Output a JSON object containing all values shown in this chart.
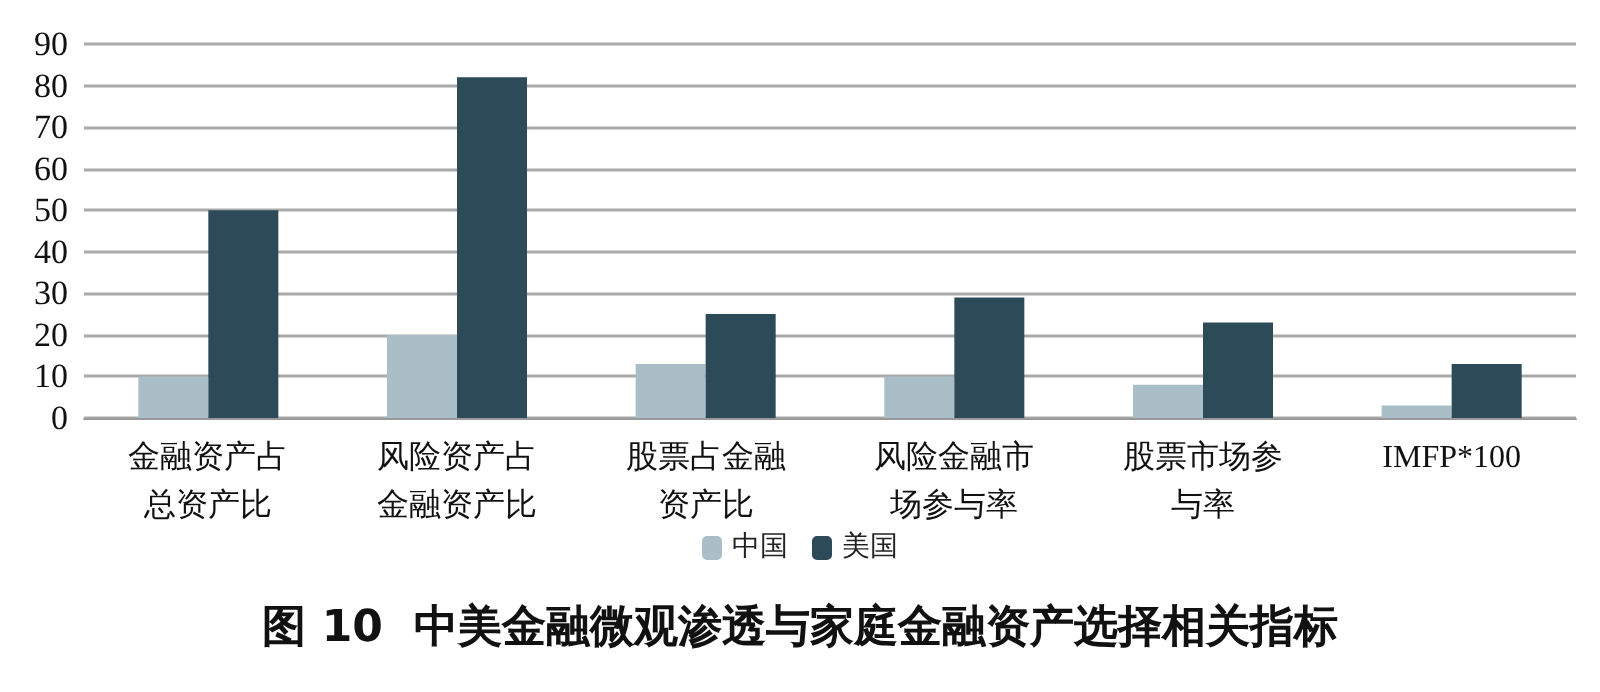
{
  "chart_data": {
    "type": "bar",
    "title": "图 10  中美金融微观渗透与家庭金融资产选择相关指标",
    "categories": [
      "金融资产占总资产比",
      "风险资产占金融资产比",
      "股票占金融资产比",
      "风险金融市场参与率",
      "股票市场参与率",
      "IMFP*100"
    ],
    "series": [
      {
        "name": "中国",
        "color": "#a9bec6",
        "values": [
          10,
          20,
          13,
          10,
          8,
          3
        ]
      },
      {
        "name": "美国",
        "color": "#2c4a58",
        "values": [
          50,
          82,
          25,
          29,
          23,
          13
        ]
      }
    ],
    "ylim": [
      0,
      90
    ],
    "yticks": [
      0,
      10,
      20,
      30,
      40,
      50,
      60,
      70,
      80,
      90
    ],
    "grid": "y",
    "legend": "bottom"
  }
}
